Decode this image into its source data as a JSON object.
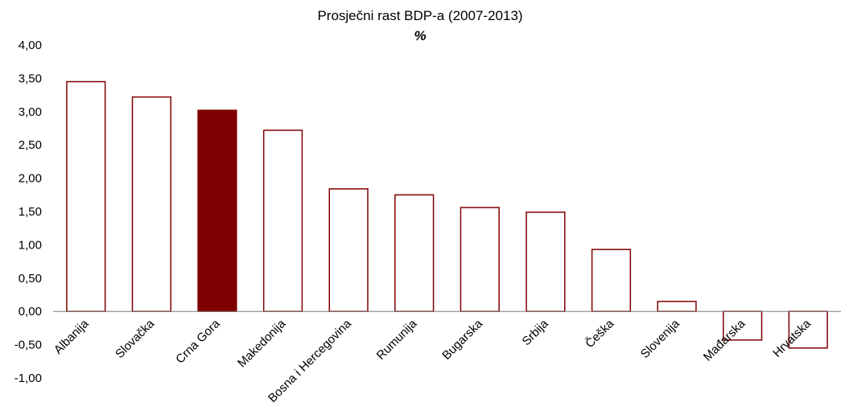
{
  "chart_data": {
    "type": "bar",
    "title": "Prosječni rast BDP-a (2007-2013)",
    "subtitle": "%",
    "xlabel": "",
    "ylabel": "",
    "categories": [
      "Albanija",
      "Slovačka",
      "Crna Gora",
      "Makedonija",
      "Bosna i Hercegovina",
      "Rumunija",
      "Bugarska",
      "Srbija",
      "Češka",
      "Slovenija",
      "Mađarska",
      "Hrvatska"
    ],
    "values": [
      3.45,
      3.22,
      3.02,
      2.72,
      1.84,
      1.75,
      1.56,
      1.49,
      0.93,
      0.15,
      -0.43,
      -0.55
    ],
    "highlight_category": "Crna Gora",
    "ylim": [
      -1.0,
      4.0
    ],
    "yticks": [
      4.0,
      3.5,
      3.0,
      2.5,
      2.0,
      1.5,
      1.0,
      0.5,
      0.0,
      -0.5,
      -1.0
    ],
    "ytick_labels": [
      "4,00",
      "3,50",
      "3,00",
      "2,50",
      "2,00",
      "1,50",
      "1,00",
      "0,50",
      "0,00",
      "-0,50",
      "-1,00"
    ],
    "grid": false,
    "legend": "none",
    "colors": {
      "bar_outline": "#7f0000",
      "highlight_fill": "#7f0000",
      "bar_fill": "#ffffff",
      "axis": "#7f7f7f"
    }
  }
}
